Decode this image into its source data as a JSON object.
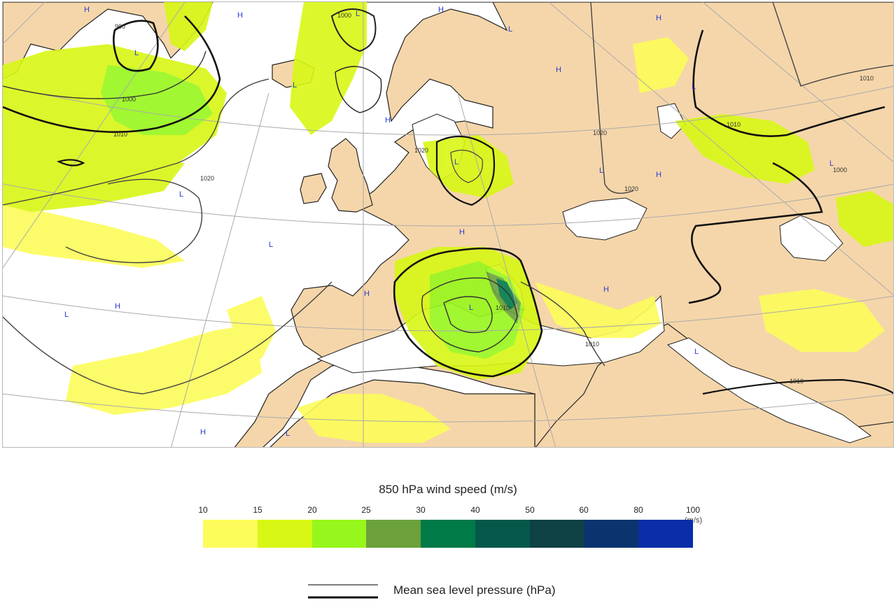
{
  "legend": {
    "title": "850 hPa wind speed (m/s)",
    "ticks": [
      "10",
      "15",
      "20",
      "25",
      "30",
      "40",
      "50",
      "60",
      "80",
      "100"
    ],
    "unit": "(m/s)",
    "colors": [
      "#fcfc5a",
      "#d8f715",
      "#97f71c",
      "#6ca13b",
      "#007a47",
      "#05584a",
      "#0e4144",
      "#0b346e",
      "#0a2ea8"
    ]
  },
  "pressure_legend": {
    "label": "Mean sea level pressure (hPa)"
  },
  "map": {
    "colors": {
      "land": "#f5d6aa",
      "sea": "#ffffff",
      "coast": "#222222",
      "isobar_thin": "#555555",
      "isobar_thick": "#111111",
      "graticule": "#aaaaaa"
    },
    "isobar_labels": [
      "990",
      "1000",
      "1010",
      "1020",
      "1000",
      "1020",
      "1010",
      "1020",
      "1000",
      "1010",
      "1020",
      "1010",
      "1010",
      "1010"
    ],
    "pressure_centers": [
      "H",
      "H",
      "L",
      "L",
      "H",
      "H",
      "L",
      "L",
      "H",
      "L",
      "L",
      "H",
      "L",
      "H",
      "L",
      "L",
      "L",
      "H",
      "H",
      "H",
      "L",
      "L",
      "H",
      "H",
      "L",
      "L"
    ]
  }
}
